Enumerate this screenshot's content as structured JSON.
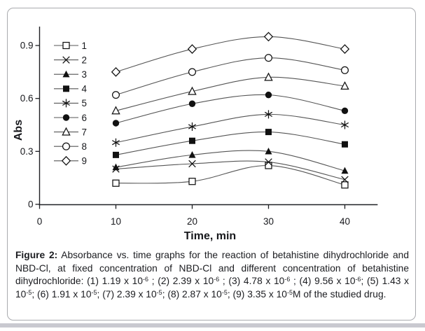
{
  "figure": {
    "caption": [
      {
        "b": "Figure 2:"
      },
      {
        "t": " Absorbance vs. time graphs for the reaction of betahistine dihydrochloride and NBD-Cl, at fixed concentration of NBD-Cl and different concentration of betahistine dihydrochloride: (1) 1.19 x 10"
      },
      {
        "sup": "-6"
      },
      {
        "t": " ; (2) 2.39 x 10"
      },
      {
        "sup": "-6"
      },
      {
        "t": " ; (3) 4.78 x 10"
      },
      {
        "sup": "-6"
      },
      {
        "t": " ; (4) 9.56 x 10"
      },
      {
        "sup": "-6"
      },
      {
        "t": "; (5) 1.43 x 10"
      },
      {
        "sup": "-5"
      },
      {
        "t": "; (6) 1.91 x 10"
      },
      {
        "sup": "-5"
      },
      {
        "t": "; (7) 2.39 x 10"
      },
      {
        "sup": "-5"
      },
      {
        "t": "; (8) 2.87 x 10"
      },
      {
        "sup": "-5"
      },
      {
        "t": "; (9) 3.35 x 10"
      },
      {
        "sup": "-5"
      },
      {
        "t": "M of the studied drug."
      }
    ]
  },
  "chart_data": {
    "type": "line",
    "title": "",
    "xlabel": "Time, min",
    "ylabel": "Abs",
    "x": [
      10,
      20,
      30,
      40
    ],
    "xticks": [
      0,
      10,
      20,
      30,
      40
    ],
    "yticks": [
      0,
      0.3,
      0.6,
      0.9
    ],
    "xlim": [
      0,
      44.3
    ],
    "ylim": [
      0,
      1.01
    ],
    "grid": false,
    "legend_position": "upper-left-inside",
    "line_color": "#555555",
    "marker_color": "#111111",
    "smooth": true,
    "series": [
      {
        "name": "1",
        "marker": "square-open",
        "values": [
          0.12,
          0.13,
          0.22,
          0.11
        ]
      },
      {
        "name": "2",
        "marker": "x",
        "values": [
          0.2,
          0.23,
          0.24,
          0.14
        ]
      },
      {
        "name": "3",
        "marker": "triangle-filled",
        "values": [
          0.21,
          0.28,
          0.3,
          0.19
        ]
      },
      {
        "name": "4",
        "marker": "square-filled",
        "values": [
          0.28,
          0.36,
          0.41,
          0.34
        ]
      },
      {
        "name": "5",
        "marker": "asterisk",
        "values": [
          0.35,
          0.44,
          0.51,
          0.45
        ]
      },
      {
        "name": "6",
        "marker": "circle-filled",
        "values": [
          0.46,
          0.57,
          0.62,
          0.53
        ]
      },
      {
        "name": "7",
        "marker": "triangle-open",
        "values": [
          0.53,
          0.64,
          0.72,
          0.67
        ]
      },
      {
        "name": "8",
        "marker": "circle-open",
        "values": [
          0.62,
          0.75,
          0.83,
          0.76
        ]
      },
      {
        "name": "9",
        "marker": "diamond-open",
        "values": [
          0.75,
          0.88,
          0.95,
          0.88
        ]
      }
    ]
  }
}
